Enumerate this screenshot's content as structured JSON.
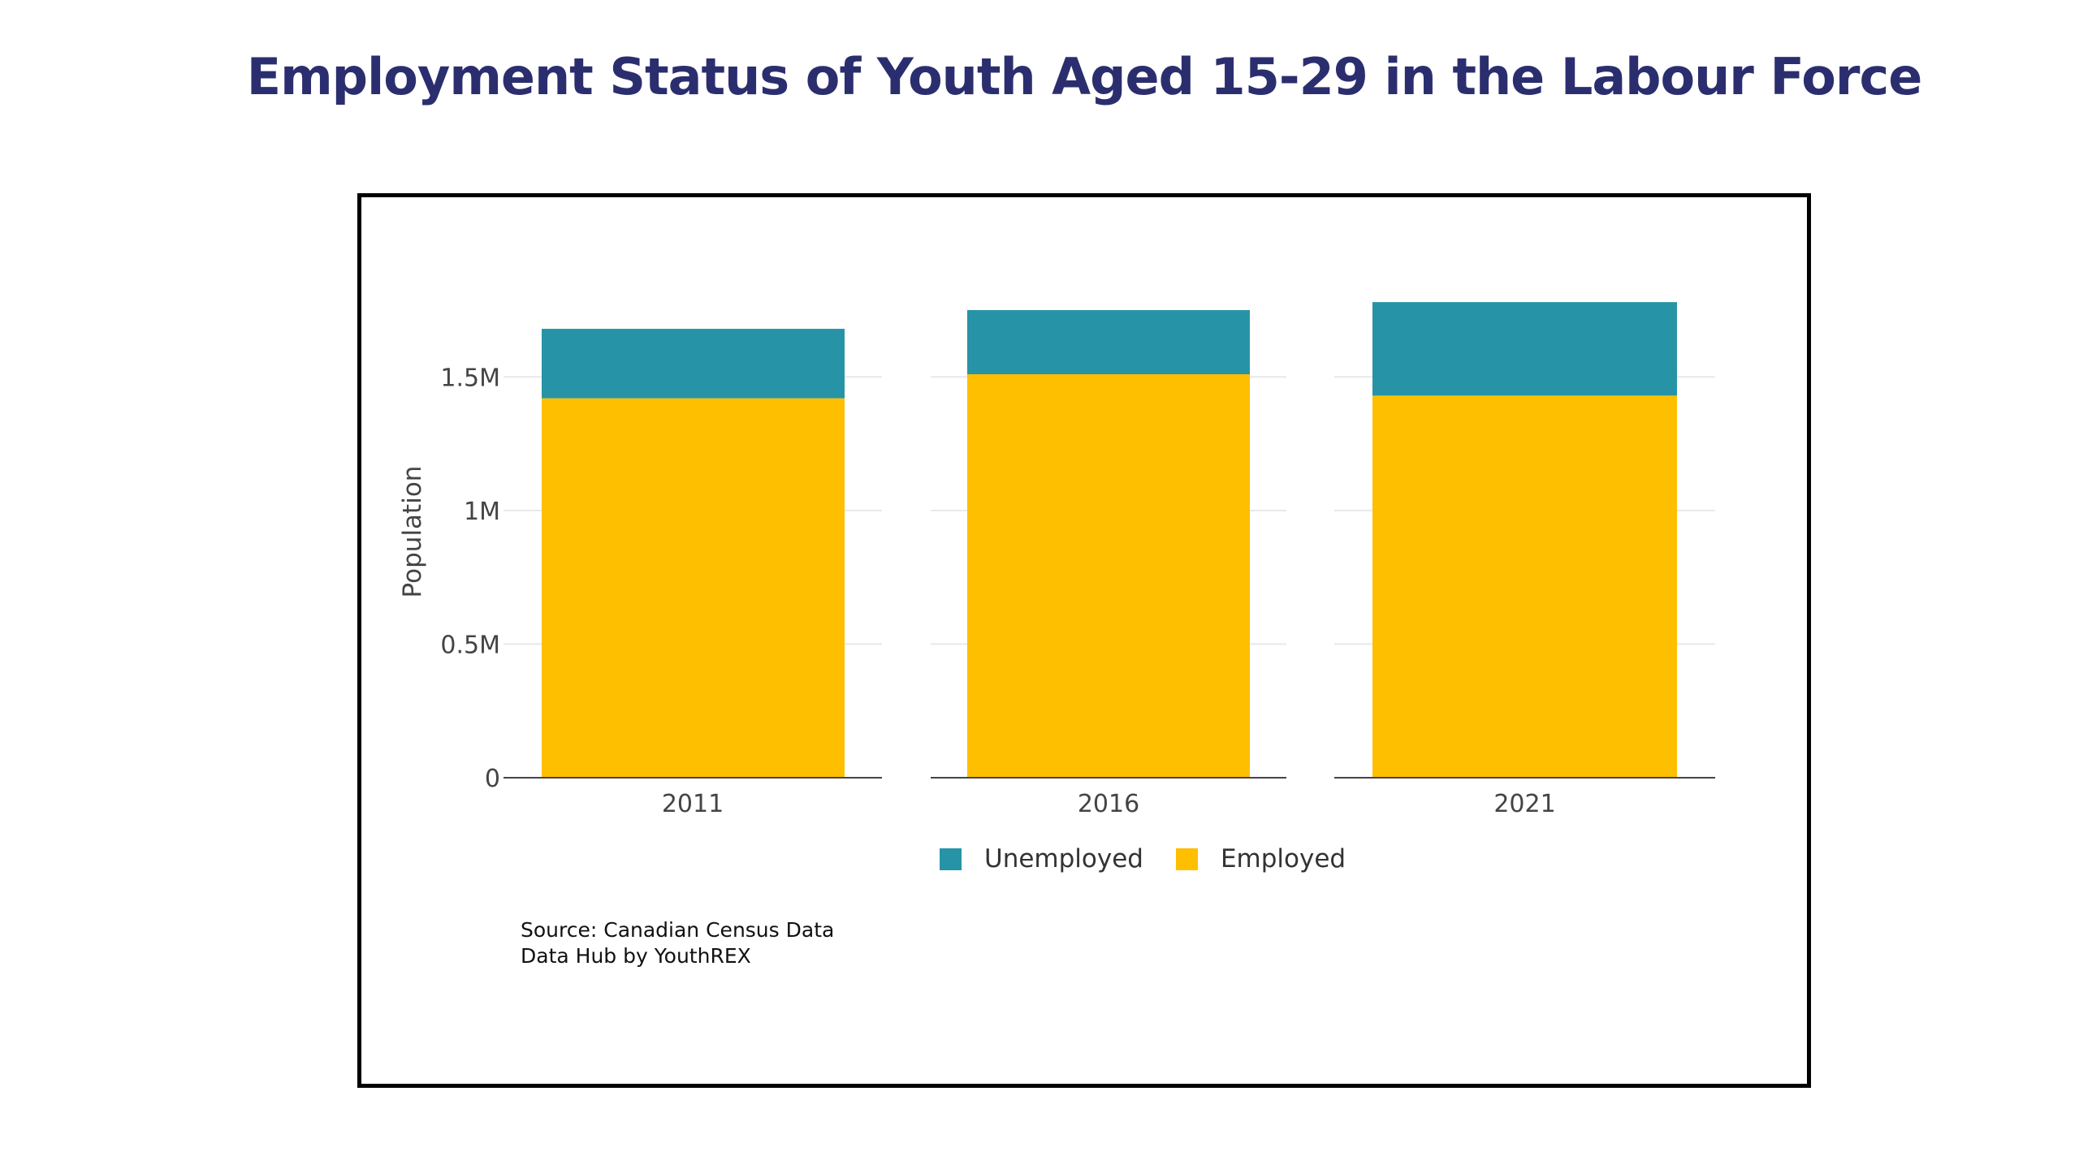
{
  "title": "Employment Status of Youth Aged 15-29 in the Labour Force",
  "colors": {
    "title": "#2b2e6e",
    "unemployed": "#2694a6",
    "employed": "#fdbf00",
    "grid": "#e8e8e8",
    "axis": "#444444"
  },
  "chart_data": {
    "type": "bar",
    "stacked": true,
    "title": "Employment Status of Youth Aged 15-29 in the Labour Force",
    "xlabel": "",
    "ylabel": "Population",
    "categories": [
      "2011",
      "2016",
      "2021"
    ],
    "series": [
      {
        "name": "Employed",
        "color": "#fdbf00",
        "values": [
          1420000,
          1510000,
          1430000
        ]
      },
      {
        "name": "Unemployed",
        "color": "#2694a6",
        "values": [
          260000,
          240000,
          350000
        ]
      }
    ],
    "ylim": [
      0,
      1750000
    ],
    "yticks": [
      0,
      500000,
      1000000,
      1500000
    ],
    "ytick_labels": [
      "0",
      "0.5M",
      "1M",
      "1.5M"
    ],
    "grid": true,
    "legend": {
      "placement": "bottom-center",
      "items": [
        "Unemployed",
        "Employed"
      ]
    }
  },
  "source": {
    "line1": "Source: Canadian Census Data",
    "line2": "Data Hub by YouthREX"
  }
}
